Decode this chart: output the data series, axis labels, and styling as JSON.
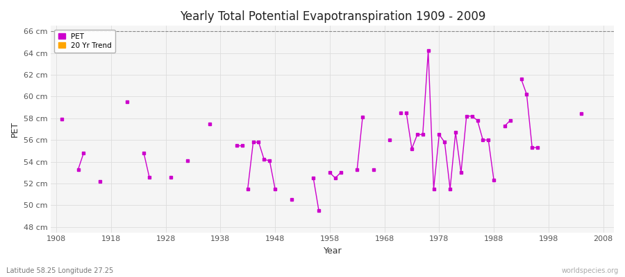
{
  "title": "Yearly Total Potential Evapotranspiration 1909 - 2009",
  "xlabel": "Year",
  "ylabel": "PET",
  "subtitle": "Latitude 58.25 Longitude 27.25",
  "watermark": "worldspecies.org",
  "pet_color": "#cc00cc",
  "trend_color": "#FFA500",
  "bg_fig_color": "#ffffff",
  "bg_ax_color": "#f5f5f5",
  "grid_color": "#dddddd",
  "ylim": [
    47.5,
    66.5
  ],
  "xlim": [
    1907,
    2010
  ],
  "yticks": [
    48,
    50,
    52,
    54,
    56,
    58,
    60,
    62,
    64,
    66
  ],
  "ytick_labels": [
    "48 cm",
    "50 cm",
    "52 cm",
    "54 cm",
    "56 cm",
    "58 cm",
    "60 cm",
    "62 cm",
    "64 cm",
    "66 cm"
  ],
  "xticks": [
    1908,
    1918,
    1928,
    1938,
    1948,
    1958,
    1968,
    1978,
    1988,
    1998,
    2008
  ],
  "pet_segments": [
    {
      "years": [
        1909
      ],
      "values": [
        57.9
      ]
    },
    {
      "years": [
        1912,
        1913
      ],
      "values": [
        53.3,
        54.8
      ]
    },
    {
      "years": [
        1916
      ],
      "values": [
        52.2
      ]
    },
    {
      "years": [
        1921
      ],
      "values": [
        59.5
      ]
    },
    {
      "years": [
        1924,
        1925
      ],
      "values": [
        54.8,
        52.6
      ]
    },
    {
      "years": [
        1929
      ],
      "values": [
        52.6
      ]
    },
    {
      "years": [
        1932
      ],
      "values": [
        54.1
      ]
    },
    {
      "years": [
        1936
      ],
      "values": [
        57.5
      ]
    },
    {
      "years": [
        1941,
        1942
      ],
      "values": [
        55.5,
        55.5
      ]
    },
    {
      "years": [
        1943,
        1944,
        1945,
        1946,
        1947,
        1948
      ],
      "values": [
        51.5,
        55.8,
        55.8,
        54.2,
        54.1,
        51.5
      ]
    },
    {
      "years": [
        1951
      ],
      "values": [
        50.5
      ]
    },
    {
      "years": [
        1955,
        1956
      ],
      "values": [
        52.5,
        49.5
      ]
    },
    {
      "years": [
        1958,
        1959,
        1960
      ],
      "values": [
        53.0,
        52.5,
        53.0
      ]
    },
    {
      "years": [
        1963,
        1964
      ],
      "values": [
        53.3,
        58.1
      ]
    },
    {
      "years": [
        1966
      ],
      "values": [
        53.3
      ]
    },
    {
      "years": [
        1969
      ],
      "values": [
        56.0
      ]
    },
    {
      "years": [
        1971
      ],
      "values": [
        58.5
      ]
    },
    {
      "years": [
        1972,
        1973,
        1974,
        1975,
        1976,
        1977,
        1978,
        1979,
        1980,
        1981,
        1982,
        1983,
        1984,
        1985,
        1986,
        1987,
        1988
      ],
      "values": [
        58.5,
        55.2,
        56.5,
        56.5,
        64.2,
        51.5,
        56.5,
        55.8,
        51.5,
        56.7,
        53.0,
        58.2,
        58.2,
        57.8,
        56.0,
        56.0,
        52.3
      ]
    },
    {
      "years": [
        1990,
        1991
      ],
      "values": [
        57.3,
        57.8
      ]
    },
    {
      "years": [
        1993,
        1994,
        1995,
        1996
      ],
      "values": [
        61.6,
        60.2,
        55.3,
        55.3
      ]
    },
    {
      "years": [
        2004
      ],
      "values": [
        58.4
      ]
    }
  ]
}
